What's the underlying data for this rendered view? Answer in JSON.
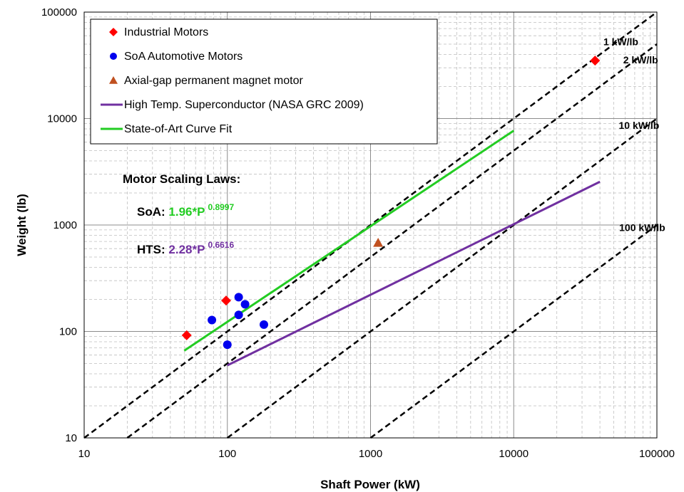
{
  "chart_data": {
    "type": "scatter",
    "title": "",
    "xlabel": "Shaft Power (kW)",
    "ylabel": "Weight (lb)",
    "xscale": "log",
    "yscale": "log",
    "xlim": [
      10,
      100000
    ],
    "ylim": [
      10,
      100000
    ],
    "grid": true,
    "legend_position": "top-left",
    "x_ticks": [
      "10",
      "100",
      "1000",
      "10000",
      "100000"
    ],
    "y_ticks": [
      "10",
      "100",
      "1000",
      "10000",
      "100000"
    ],
    "series": [
      {
        "name": "Industrial Motors",
        "kind": "scatter",
        "marker": "diamond",
        "color": "#ff0000",
        "points": [
          [
            52,
            92
          ],
          [
            98,
            195
          ],
          [
            37000,
            35000
          ]
        ]
      },
      {
        "name": "SoA Automotive Motors",
        "kind": "scatter",
        "marker": "circle",
        "color": "#0000ee",
        "points": [
          [
            78,
            128
          ],
          [
            100,
            75
          ],
          [
            120,
            210
          ],
          [
            120,
            143
          ],
          [
            133,
            180
          ],
          [
            180,
            116
          ]
        ]
      },
      {
        "name": "Axial-gap permanent magnet motor",
        "kind": "scatter",
        "marker": "triangle",
        "color": "#c0501f",
        "points": [
          [
            1130,
            680
          ]
        ]
      },
      {
        "name": "High Temp. Superconductor (NASA GRC 2009)",
        "kind": "line",
        "color": "#7030a0",
        "points": [
          [
            100,
            48
          ],
          [
            40000,
            2550
          ]
        ]
      },
      {
        "name": "State-of-Art Curve Fit",
        "kind": "line",
        "color": "#22cc22",
        "points": [
          [
            50,
            66
          ],
          [
            10000,
            7700
          ]
        ]
      }
    ],
    "reference_lines": [
      {
        "label": "1 kW/lb",
        "ratio": 1
      },
      {
        "label": "2 kW/lb",
        "ratio": 2
      },
      {
        "label": "10 kW/lb",
        "ratio": 10
      },
      {
        "label": "100 kW/lb",
        "ratio": 100
      }
    ],
    "annotations": {
      "title": "Motor Scaling Laws:",
      "soa_prefix": "SoA: ",
      "soa_formula": "1.96*P",
      "soa_exponent": "0.8997",
      "soa_color": "#22cc22",
      "hts_prefix": "HTS: ",
      "hts_formula": "2.28*P",
      "hts_exponent": "0.6616",
      "hts_color": "#7030a0"
    }
  }
}
